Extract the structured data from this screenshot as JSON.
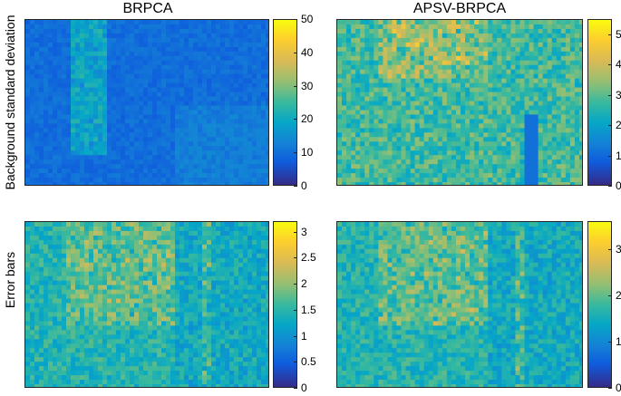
{
  "chart_data": [
    {
      "type": "heatmap",
      "title": "BRPCA",
      "ylabel": "Background standard deviation",
      "colorbar": {
        "ticks": [
          "0",
          "10",
          "20",
          "30",
          "40",
          "50"
        ],
        "min": 0,
        "max": 50
      },
      "mean_level": 10,
      "colormap": "parula"
    },
    {
      "type": "heatmap",
      "title": "APSV-BRPCA",
      "ylabel": "",
      "colorbar": {
        "ticks": [
          "0",
          "1",
          "2",
          "3",
          "4",
          "5"
        ],
        "min": 0,
        "max": 5.5
      },
      "mean_level": 3.3,
      "colormap": "parula"
    },
    {
      "type": "heatmap",
      "title": "",
      "ylabel": "Error bars",
      "colorbar": {
        "ticks": [
          "0",
          "0.5",
          "1",
          "1.5",
          "2",
          "2.5",
          "3"
        ],
        "min": 0,
        "max": 3.2
      },
      "mean_level": 1.6,
      "colormap": "parula"
    },
    {
      "type": "heatmap",
      "title": "",
      "ylabel": "",
      "colorbar": {
        "ticks": [
          "0",
          "1",
          "2",
          "3"
        ],
        "min": 0,
        "max": 3.6
      },
      "mean_level": 1.6,
      "colormap": "parula"
    }
  ]
}
